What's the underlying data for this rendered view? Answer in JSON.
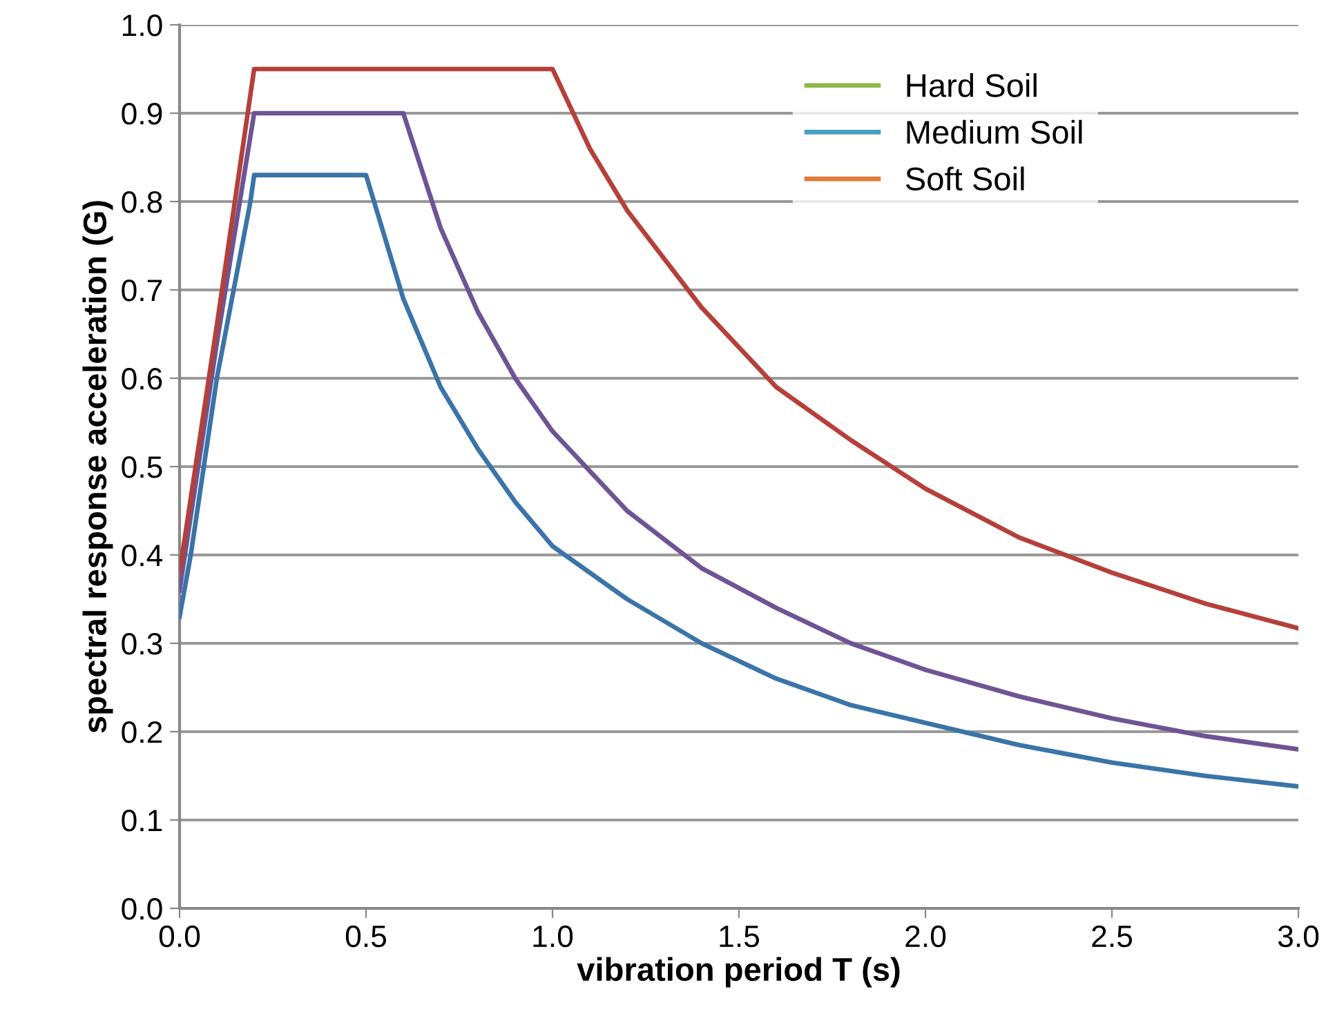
{
  "chart_data": {
    "type": "line",
    "xlabel": "vibration period T (s)",
    "ylabel": "spectral response acceleration (G)",
    "series": [
      {
        "name": "Hard Soil",
        "color": "#8db84a"
      },
      {
        "name": "Medium Soil",
        "color": "#4aa0c0"
      },
      {
        "name": "Soft Soil",
        "color": "#e07b39"
      },
      {
        "color": "#3a74a8",
        "x": [
          0,
          0.03,
          0.1,
          0.19,
          0.2,
          0.5,
          0.6,
          0.7,
          0.8,
          0.9,
          1.0,
          1.2,
          1.4,
          1.6,
          1.8,
          2.0,
          2.25,
          2.5,
          2.75,
          3.0
        ],
        "values": [
          0.33,
          0.4,
          0.6,
          0.8,
          0.83,
          0.83,
          0.69,
          0.59,
          0.52,
          0.46,
          0.41,
          0.35,
          0.3,
          0.26,
          0.23,
          0.21,
          0.185,
          0.165,
          0.15,
          0.138
        ]
      },
      {
        "color": "#6e5494",
        "x": [
          0,
          0.1,
          0.2,
          0.6,
          0.7,
          0.8,
          0.9,
          1.0,
          1.2,
          1.4,
          1.6,
          1.8,
          2.0,
          2.25,
          2.5,
          2.75,
          3.0
        ],
        "values": [
          0.36,
          0.64,
          0.9,
          0.9,
          0.77,
          0.675,
          0.6,
          0.54,
          0.45,
          0.385,
          0.34,
          0.3,
          0.27,
          0.24,
          0.215,
          0.195,
          0.18
        ]
      },
      {
        "color": "#b5403a",
        "x": [
          0,
          0.1,
          0.2,
          1.0,
          1.1,
          1.2,
          1.4,
          1.6,
          1.8,
          2.0,
          2.25,
          2.5,
          2.75,
          3.0
        ],
        "values": [
          0.38,
          0.66,
          0.95,
          0.95,
          0.86,
          0.79,
          0.68,
          0.59,
          0.53,
          0.475,
          0.42,
          0.38,
          0.345,
          0.317
        ]
      }
    ],
    "xlim": [
      0,
      3.0
    ],
    "xticks": [
      {
        "value": 0,
        "label": "0.0"
      },
      0.5,
      {
        "value": 1,
        "label": "1.0"
      },
      1.5,
      {
        "value": 2,
        "label": "2.0"
      },
      2.5,
      {
        "value": 3,
        "label": "3.0"
      }
    ],
    "ylim": [
      0,
      1.0
    ],
    "yticks": [
      {
        "value": 0,
        "label": "0.0"
      },
      0.1,
      0.2,
      0.3,
      0.4,
      0.5,
      0.6,
      0.7,
      0.8,
      0.9,
      {
        "value": 1,
        "label": "1.0"
      }
    ],
    "grid": "y",
    "legend": "top right",
    "marker": "none",
    "line_style": "solid"
  }
}
